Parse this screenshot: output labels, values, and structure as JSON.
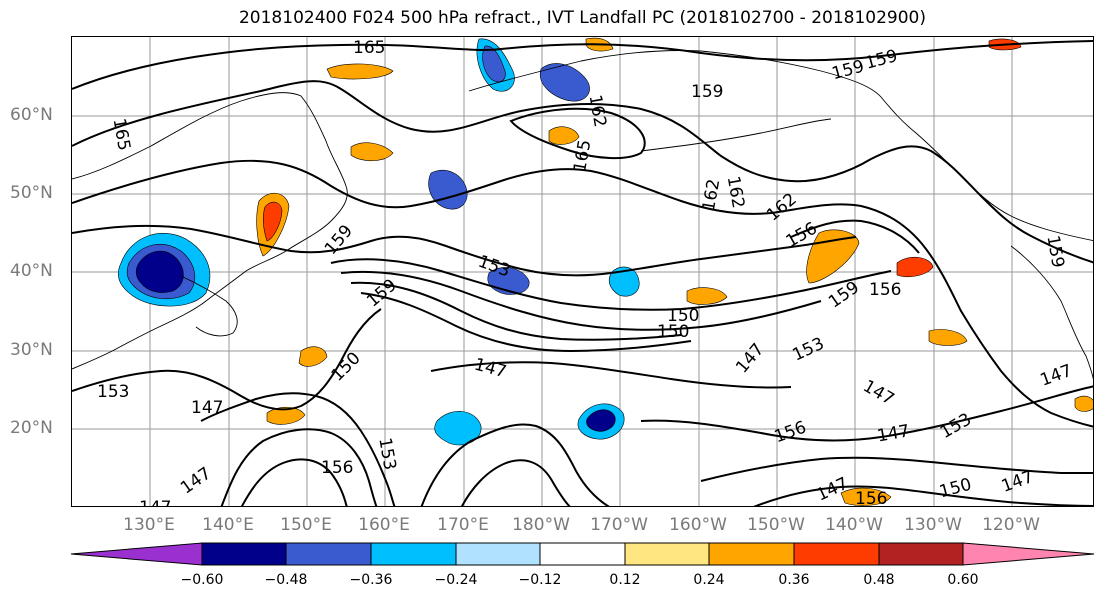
{
  "title": "2018102400 F024 500 hPa refract., IVT Landfall PC (2018102700 - 2018102900)",
  "lat_labels": [
    "60°N",
    "50°N",
    "40°N",
    "30°N",
    "20°N"
  ],
  "lon_labels": [
    "130°E",
    "140°E",
    "150°E",
    "160°E",
    "170°E",
    "180°W",
    "170°W",
    "160°W",
    "150°W",
    "140°W",
    "130°W",
    "120°W"
  ],
  "contour_labels": [
    "165",
    "165",
    "165",
    "162",
    "162",
    "162",
    "162",
    "159",
    "159",
    "159",
    "159",
    "159",
    "159",
    "159",
    "156",
    "156",
    "156",
    "156",
    "156",
    "153",
    "153",
    "153",
    "153",
    "153",
    "150",
    "150",
    "150",
    "150",
    "147",
    "147",
    "147",
    "147",
    "147",
    "147",
    "147",
    "147",
    "147",
    "147"
  ],
  "colorbar": {
    "ticks": [
      "−0.60",
      "−0.48",
      "−0.36",
      "−0.24",
      "−0.12",
      "0.12",
      "0.24",
      "0.36",
      "0.48",
      "0.60"
    ],
    "colors": [
      "#9b30d0",
      "#00008b",
      "#3a5bd0",
      "#00bfff",
      "#b0e2ff",
      "#ffffff",
      "#ffe680",
      "#ffa500",
      "#ff3c00",
      "#b22222",
      "#ff85b0"
    ]
  },
  "colors": {
    "contour": "#000000",
    "grid": "#9a9a9a",
    "axis_labels": "#7a7a7a"
  }
}
